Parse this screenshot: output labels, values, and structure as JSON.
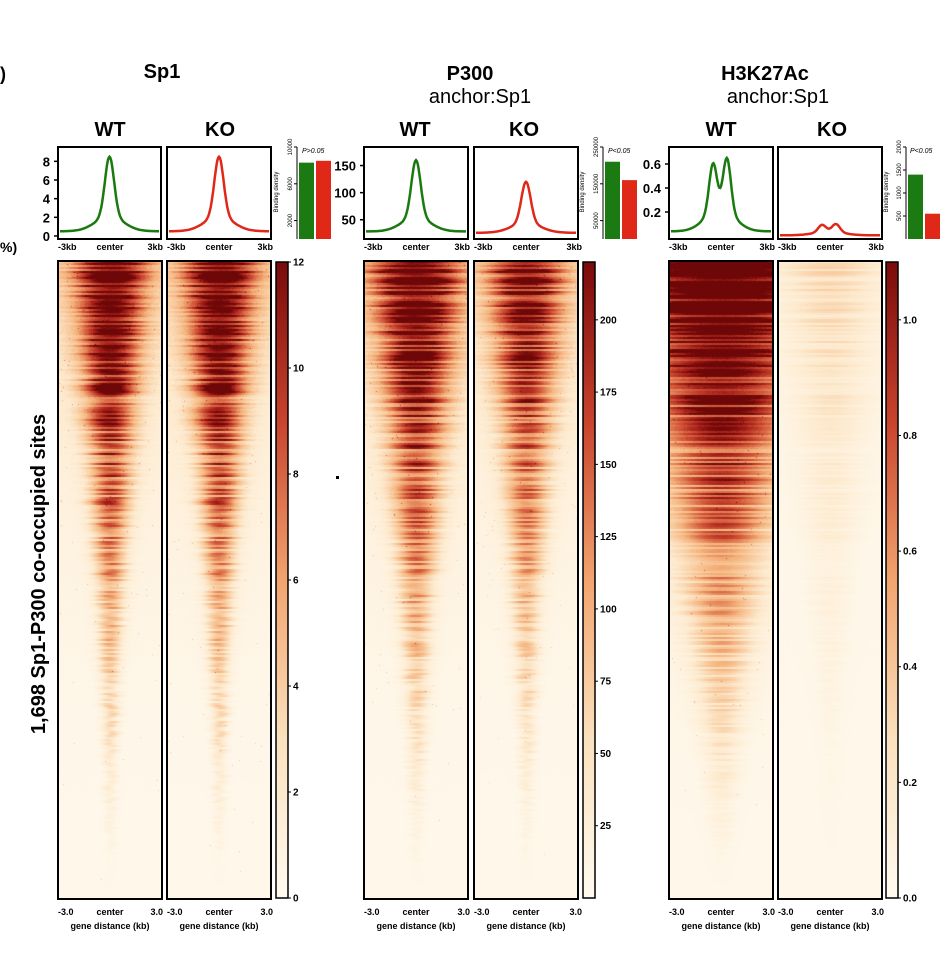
{
  "stray_labels": {
    "left_edge": ")",
    "percent_edge": "%)"
  },
  "y_title": "1,698 Sp1-P300 co-occupied sites",
  "chart_data": [
    {
      "type": "heatmap",
      "group": "Sp1",
      "title": "Sp1",
      "subtitle": "",
      "conditions": [
        "WT",
        "KO"
      ],
      "profile": {
        "x_ticks": [
          "-3kb",
          "center",
          "3kb"
        ],
        "y_range": [
          0,
          9
        ],
        "y_ticks": [
          0,
          2,
          4,
          6,
          8
        ],
        "wt_shape": "single",
        "wt_peak": 8.5,
        "ko_shape": "single",
        "ko_peak": 8.5
      },
      "bar": {
        "type": "bar",
        "ylabel": "Binding density",
        "ylim": [
          0,
          10000
        ],
        "y_ticks": [
          2000,
          6000,
          10000
        ],
        "categories": [
          "WT",
          "KO"
        ],
        "values": [
          8300,
          8500
        ],
        "pvalue": "P>0.05"
      },
      "heatmap": {
        "rows": 1698,
        "x_ticks": [
          "-3.0",
          "center",
          "3.0"
        ],
        "xlabel": "gene distance (kb)",
        "wt_intensity": 1.0,
        "ko_intensity": 1.0,
        "wt_spread": 1.0,
        "ko_spread": 1.0,
        "colorbar": {
          "min": 0,
          "max": 12,
          "ticks": [
            0,
            2,
            4,
            6,
            8,
            10,
            12
          ]
        }
      }
    },
    {
      "type": "heatmap",
      "group": "P300",
      "title": "P300",
      "subtitle": "anchor:Sp1",
      "conditions": [
        "WT",
        "KO"
      ],
      "profile": {
        "x_ticks": [
          "-3kb",
          "center",
          "3kb"
        ],
        "y_range": [
          20,
          175
        ],
        "y_ticks": [
          50,
          100,
          150
        ],
        "wt_shape": "single",
        "wt_peak": 160,
        "ko_shape": "single",
        "ko_peak": 120
      },
      "bar": {
        "type": "bar",
        "ylabel": "Binding density",
        "ylim": [
          0,
          250000
        ],
        "y_ticks": [
          50000,
          150000,
          250000
        ],
        "categories": [
          "WT",
          "KO"
        ],
        "values": [
          210000,
          160000
        ],
        "pvalue": "P<0.05"
      },
      "heatmap": {
        "rows": 1698,
        "x_ticks": [
          "-3.0",
          "center",
          "3.0"
        ],
        "xlabel": "gene distance (kb)",
        "wt_intensity": 1.0,
        "ko_intensity": 0.85,
        "wt_spread": 1.25,
        "ko_spread": 1.1,
        "colorbar": {
          "min": 0,
          "max": 220,
          "ticks": [
            25,
            50,
            75,
            100,
            125,
            150,
            175,
            200
          ]
        }
      }
    },
    {
      "type": "heatmap",
      "group": "H3K27Ac",
      "title": "H3K27Ac",
      "subtitle": "anchor:Sp1",
      "conditions": [
        "WT",
        "KO"
      ],
      "profile": {
        "x_ticks": [
          "-3kb",
          "center",
          "3kb"
        ],
        "y_range": [
          0,
          0.7
        ],
        "y_ticks": [
          0.2,
          0.4,
          0.6
        ],
        "wt_shape": "double",
        "wt_peak": 0.65,
        "ko_shape": "double",
        "ko_peak": 0.1
      },
      "bar": {
        "type": "bar",
        "ylabel": "Binding density",
        "ylim": [
          0,
          2000
        ],
        "y_ticks": [
          500,
          1000,
          1500,
          2000
        ],
        "categories": [
          "WT",
          "KO"
        ],
        "values": [
          1400,
          550
        ],
        "pvalue": "P<0.05"
      },
      "heatmap": {
        "rows": 1698,
        "x_ticks": [
          "-3.0",
          "center",
          "3.0"
        ],
        "xlabel": "gene distance (kb)",
        "wt_intensity": 1.0,
        "ko_intensity": 0.18,
        "wt_spread": 2.6,
        "ko_spread": 1.5,
        "colorbar": {
          "min": 0,
          "max": 1.1,
          "ticks": [
            "0.0",
            "0.2",
            "0.4",
            "0.6",
            "0.8",
            "1.0"
          ]
        }
      }
    }
  ]
}
